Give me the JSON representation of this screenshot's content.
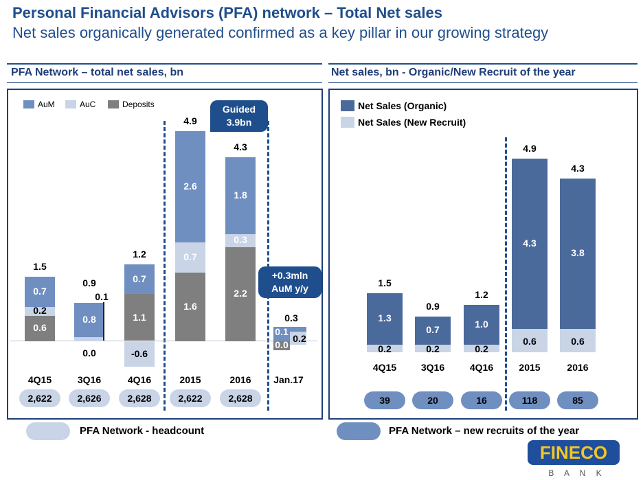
{
  "header": {
    "title": "Personal Financial Advisors (PFA) network – Total Net sales",
    "subtitle": "Net sales organically generated confirmed as a key pillar in our growing strategy"
  },
  "colors": {
    "aum": "#6f8fc1",
    "auc": "#c9d4e6",
    "deposits": "#7f7f7f",
    "organic": "#4b6a9c",
    "new_recruit": "#c9d4e6",
    "navy": "#1f4e8c"
  },
  "chart_data": [
    {
      "type": "bar",
      "title": "PFA Network – total net sales, bn",
      "stacked": true,
      "categories": [
        "4Q15",
        "3Q16",
        "4Q16",
        "2015",
        "2016",
        "Jan.17"
      ],
      "series": [
        {
          "name": "Deposits",
          "values": [
            0.6,
            0.0,
            1.1,
            1.6,
            2.2,
            0.0
          ]
        },
        {
          "name": "AuC",
          "values": [
            0.2,
            0.1,
            -0.6,
            0.7,
            0.3,
            0.2
          ]
        },
        {
          "name": "AuM",
          "values": [
            0.7,
            0.8,
            0.7,
            2.6,
            1.8,
            0.1
          ]
        }
      ],
      "totals": [
        "1.5",
        "0.9",
        "1.2",
        "4.9",
        "4.3",
        "0.3"
      ],
      "headcount": [
        "2,622",
        "2,626",
        "2,628",
        "2,622",
        "2,628"
      ],
      "callouts": [
        "Guided 3.9bn",
        "+0.3mln AuM y/y"
      ],
      "legend": [
        "AuM",
        "AuC",
        "Deposits"
      ],
      "legend_position": "top-left"
    },
    {
      "type": "bar",
      "title": "Net sales, bn - Organic/New Recruit of the year",
      "stacked": true,
      "categories": [
        "4Q15",
        "3Q16",
        "4Q16",
        "2015",
        "2016"
      ],
      "series": [
        {
          "name": "Net Sales (New Recruit)",
          "values": [
            0.2,
            0.2,
            0.2,
            0.6,
            0.6
          ]
        },
        {
          "name": "Net Sales (Organic)",
          "values": [
            1.3,
            0.7,
            1.0,
            4.3,
            3.8
          ]
        }
      ],
      "totals": [
        "1.5",
        "0.9",
        "1.2",
        "4.9",
        "4.3"
      ],
      "new_recruits": [
        "39",
        "20",
        "16",
        "118",
        "85"
      ],
      "legend": [
        "Net Sales (Organic)",
        "Net Sales (New Recruit)"
      ],
      "legend_position": "top-left"
    }
  ],
  "footer": {
    "headcount_label": "PFA Network - headcount",
    "recruits_label": "PFA Network – new recruits of the year"
  },
  "logo": {
    "name": "FINECO",
    "sub": "B A N K"
  }
}
